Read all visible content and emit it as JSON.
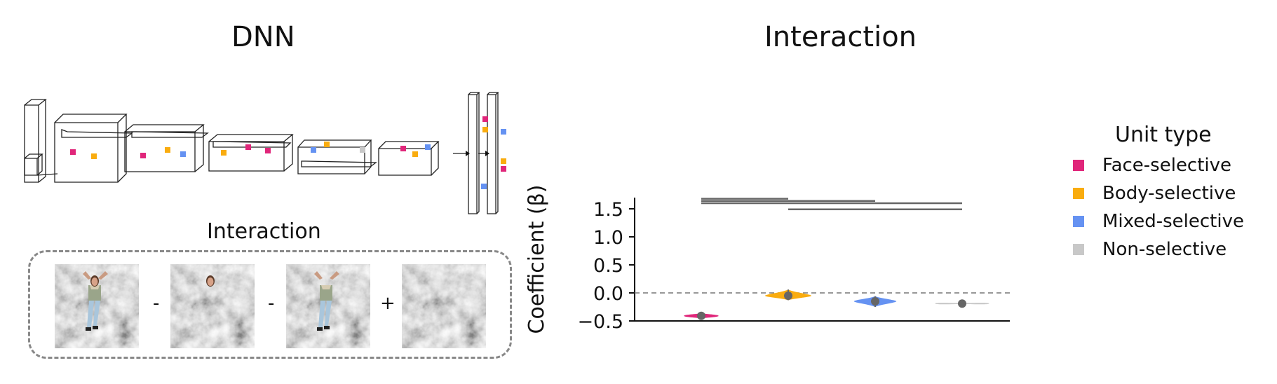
{
  "left_title": "DNN",
  "interaction_label": "Interaction",
  "operators": [
    "-",
    "-",
    "+"
  ],
  "stimuli": [
    {
      "name": "whole-image",
      "face": true,
      "body": true
    },
    {
      "name": "face-only",
      "face": true,
      "body": false
    },
    {
      "name": "body-only",
      "face": false,
      "body": true
    },
    {
      "name": "background-only",
      "face": false,
      "body": false
    }
  ],
  "colors": {
    "face": "#e0267a",
    "body": "#f9ac0f",
    "mixed": "#6592f2",
    "non": "#c8c8c8",
    "sig_line": "#666666",
    "axis": "#111111"
  },
  "chart_data": {
    "type": "violin",
    "title": "Interaction",
    "ylabel": "Coefficient (β)",
    "xlabel": "",
    "ylim": [
      -0.5,
      1.7
    ],
    "yticks": [
      "1.5",
      "1.0",
      "0.5",
      "0.0",
      "−0.5"
    ],
    "ytick_values": [
      1.5,
      1.0,
      0.5,
      0.0,
      -0.5
    ],
    "zero_line": 0.0,
    "legend_title": "Unit type",
    "legend_placement": "right",
    "series": [
      {
        "name": "Face-selective",
        "color_key": "face",
        "median": -0.41,
        "q1": -0.43,
        "q3": -0.39,
        "min": -0.46,
        "max": -0.36,
        "spread": 0.45
      },
      {
        "name": "Body-selective",
        "color_key": "body",
        "median": -0.05,
        "q1": -0.08,
        "q3": -0.01,
        "min": -0.13,
        "max": 0.06,
        "spread": 0.6
      },
      {
        "name": "Mixed-selective",
        "color_key": "mixed",
        "median": -0.15,
        "q1": -0.18,
        "q3": -0.12,
        "min": -0.25,
        "max": -0.06,
        "spread": 0.55
      },
      {
        "name": "Non-selective",
        "color_key": "non",
        "median": -0.19,
        "q1": -0.195,
        "q3": -0.185,
        "min": -0.2,
        "max": -0.18,
        "spread": 0.7
      }
    ],
    "significance_bars": [
      {
        "from": 0,
        "to": 1,
        "y": 1.68
      },
      {
        "from": 0,
        "to": 2,
        "y": 1.64
      },
      {
        "from": 0,
        "to": 3,
        "y": 1.6
      },
      {
        "from": 1,
        "to": 3,
        "y": 1.49
      }
    ]
  }
}
